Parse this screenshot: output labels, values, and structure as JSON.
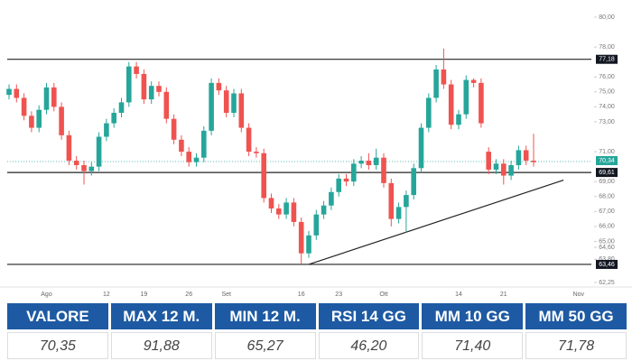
{
  "chart_data": {
    "type": "candlestick",
    "categories": [
      null,
      null,
      null,
      null,
      null,
      "Ago",
      null,
      null,
      null,
      null,
      null,
      null,
      null,
      "12",
      null,
      null,
      null,
      null,
      "19",
      null,
      null,
      null,
      null,
      null,
      "26",
      null,
      null,
      null,
      null,
      "Set",
      null,
      null,
      null,
      null,
      null,
      null,
      null,
      null,
      null,
      "16",
      null,
      null,
      null,
      null,
      "23",
      null,
      null,
      null,
      null,
      null,
      "Ott",
      null,
      null,
      null,
      null,
      null,
      null,
      null,
      null,
      null,
      "14",
      null,
      null,
      null,
      null,
      null,
      "21",
      null,
      null,
      null,
      null,
      null,
      null,
      null,
      null,
      null,
      "Nov",
      null
    ],
    "open": [
      74.8,
      75.2,
      74.6,
      73.4,
      72.6,
      73.8,
      75.3,
      74.0,
      72.1,
      70.4,
      70.1,
      69.7,
      70.0,
      72.0,
      72.9,
      73.6,
      74.3,
      76.7,
      76.2,
      74.5,
      75.4,
      75.0,
      73.2,
      71.8,
      71.0,
      70.3,
      70.6,
      72.4,
      75.6,
      75.1,
      73.6,
      74.9,
      72.6,
      71.0,
      70.9,
      67.9,
      67.2,
      66.8,
      67.6,
      66.3,
      64.2,
      65.4,
      66.8,
      67.4,
      68.3,
      69.2,
      69.0,
      70.2,
      70.4,
      70.1,
      70.6,
      68.9,
      66.5,
      67.3,
      68.1,
      69.9,
      72.6,
      74.6,
      76.5,
      75.5,
      72.8,
      73.5,
      75.8,
      75.6,
      71.0,
      69.8,
      70.2,
      69.4,
      70.1,
      71.1,
      70.4,
      null,
      null,
      null,
      null,
      null,
      null,
      null
    ],
    "high": [
      75.5,
      75.5,
      74.9,
      73.7,
      74.1,
      75.6,
      75.6,
      74.3,
      72.4,
      70.7,
      70.4,
      70.3,
      72.3,
      73.2,
      73.9,
      74.6,
      77.0,
      77.0,
      76.5,
      75.7,
      75.7,
      75.3,
      73.5,
      72.1,
      71.3,
      70.9,
      72.7,
      75.9,
      75.9,
      75.4,
      75.2,
      75.2,
      72.9,
      71.3,
      71.2,
      68.2,
      67.5,
      67.9,
      67.9,
      66.6,
      65.7,
      67.1,
      67.7,
      68.6,
      69.5,
      69.5,
      70.5,
      70.7,
      70.9,
      71.2,
      70.9,
      69.2,
      67.6,
      68.4,
      70.2,
      72.9,
      74.9,
      76.8,
      77.9,
      75.8,
      73.8,
      76.1,
      75.9,
      75.9,
      71.3,
      70.5,
      70.5,
      70.4,
      71.4,
      71.4,
      72.2,
      null,
      null,
      null,
      null,
      null,
      null,
      null
    ],
    "low": [
      74.5,
      74.3,
      73.1,
      72.3,
      72.3,
      73.5,
      73.7,
      71.8,
      70.1,
      69.8,
      68.8,
      69.4,
      69.7,
      71.7,
      72.6,
      73.3,
      74.0,
      75.9,
      74.2,
      74.2,
      74.7,
      72.9,
      71.5,
      70.7,
      70.0,
      70.0,
      70.3,
      72.1,
      74.8,
      73.3,
      73.3,
      72.3,
      70.7,
      70.6,
      67.6,
      66.9,
      66.5,
      66.5,
      66.0,
      63.46,
      63.9,
      65.1,
      66.5,
      67.1,
      68.0,
      68.7,
      68.7,
      69.9,
      69.8,
      69.8,
      68.6,
      66.0,
      66.2,
      65.6,
      67.8,
      69.6,
      72.3,
      74.3,
      75.2,
      72.5,
      72.5,
      73.2,
      75.3,
      72.6,
      69.5,
      69.5,
      68.8,
      69.1,
      69.8,
      70.1,
      70.0,
      null,
      null,
      null,
      null,
      null,
      null,
      null
    ],
    "close": [
      75.2,
      74.6,
      73.4,
      72.6,
      73.8,
      75.3,
      74.0,
      72.1,
      70.4,
      70.1,
      69.7,
      70.0,
      72.0,
      72.9,
      73.6,
      74.3,
      76.7,
      76.2,
      74.5,
      75.4,
      75.0,
      73.2,
      71.8,
      71.0,
      70.3,
      70.6,
      72.4,
      75.6,
      75.1,
      73.6,
      74.9,
      72.6,
      71.0,
      70.9,
      67.9,
      67.2,
      66.8,
      67.6,
      66.3,
      64.2,
      65.4,
      66.8,
      67.4,
      68.3,
      69.2,
      69.0,
      70.2,
      70.4,
      70.1,
      70.6,
      68.9,
      66.5,
      67.3,
      68.1,
      69.9,
      72.6,
      74.6,
      76.5,
      75.5,
      72.8,
      73.5,
      75.8,
      75.6,
      72.9,
      69.8,
      70.2,
      69.4,
      70.1,
      71.1,
      70.4,
      70.3,
      null,
      null,
      null,
      null,
      null,
      null,
      null
    ],
    "up_color": "#26a69a",
    "down_color": "#ef5350",
    "ylim": [
      62.25,
      80
    ],
    "yticks": [
      {
        "value": 80,
        "label": "80,00"
      },
      {
        "value": 78,
        "label": "78,00"
      },
      {
        "value": 76,
        "label": "76,00"
      },
      {
        "value": 75,
        "label": "75,00"
      },
      {
        "value": 74,
        "label": "74,00"
      },
      {
        "value": 73,
        "label": "73,00"
      },
      {
        "value": 71,
        "label": "71,00"
      },
      {
        "value": 69,
        "label": "69,00"
      },
      {
        "value": 68,
        "label": "68,00"
      },
      {
        "value": 67,
        "label": "67,00"
      },
      {
        "value": 66,
        "label": "66,00"
      },
      {
        "value": 65,
        "label": "65,00"
      },
      {
        "value": 64.6,
        "label": "64,60"
      },
      {
        "value": 63.8,
        "label": "63,80"
      },
      {
        "value": 62.25,
        "label": "62,25"
      }
    ],
    "levels": [
      {
        "value": 77.18,
        "label": "77,18"
      },
      {
        "value": 69.61,
        "label": "69,61"
      },
      {
        "value": 63.46,
        "label": "63,46"
      }
    ],
    "last_price": {
      "value": 70.34,
      "label": "70,34"
    },
    "trendline": {
      "x": [
        40,
        74
      ],
      "y": [
        63.46,
        69.1
      ]
    }
  },
  "table": {
    "headers": [
      "VALORE",
      "MAX 12 M.",
      "MIN 12 M.",
      "RSI 14 GG",
      "MM 10 GG",
      "MM 50 GG"
    ],
    "rows": [
      [
        "70,35",
        "91,88",
        "65,27",
        "46,20",
        "71,40",
        "71,78"
      ]
    ]
  }
}
